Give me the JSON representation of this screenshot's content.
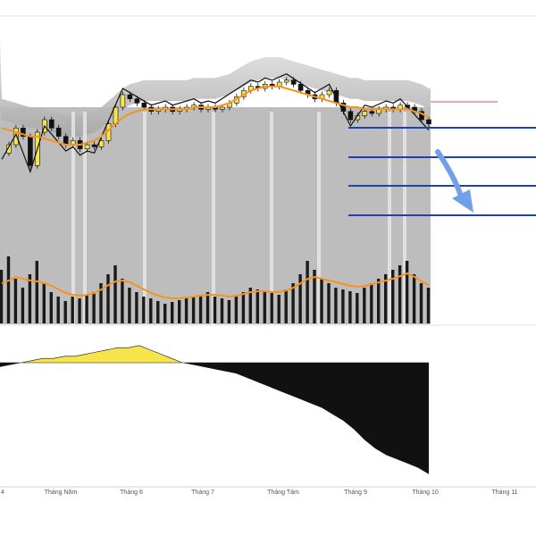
{
  "chart_data": {
    "type": "candlestick",
    "grid": false,
    "legend": "none",
    "x_ticks": [
      "4",
      "Tháng Năm",
      "Tháng 6",
      "Tháng 7",
      "Tháng Tám",
      "Tháng 9",
      "Tháng 10",
      "Tháng 11"
    ],
    "colors": {
      "ma_line": "#f7931e",
      "candle_up": "#f5e44c",
      "candle_down": "#111111",
      "volume_bar": "#1a1a1a",
      "projection_lines": "#1f3fb5",
      "resistance_line": "#e05050",
      "arrow": "#6fa0e8",
      "oscillator_positive": "#f5e44c",
      "oscillator_negative": "#111111",
      "band_fill": "#bdbdbd",
      "highlight_columns": "#e6e6e6"
    },
    "price_path": [
      58,
      62,
      70,
      66,
      52,
      68,
      74,
      70,
      66,
      62,
      64,
      60,
      62,
      61,
      64,
      72,
      80,
      86,
      84,
      82,
      80,
      78,
      79,
      80,
      78,
      79,
      80,
      81,
      79,
      80,
      79,
      80,
      82,
      85,
      88,
      90,
      89,
      91,
      90,
      92,
      93,
      91,
      88,
      86,
      84,
      86,
      88,
      82,
      78,
      74,
      76,
      78,
      77,
      79,
      80,
      79,
      81,
      80,
      78,
      74,
      72
    ],
    "ma_path": [
      70,
      69,
      68,
      67,
      66,
      66,
      65,
      64,
      63,
      62,
      62,
      62,
      63,
      64,
      66,
      69,
      72,
      75,
      77,
      78,
      79,
      79,
      79,
      79,
      79,
      79,
      79,
      80,
      80,
      80,
      80,
      81,
      82,
      84,
      86,
      88,
      89,
      90,
      90,
      90,
      89,
      88,
      87,
      86,
      85,
      84,
      83,
      82,
      81,
      80,
      80,
      79,
      79,
      79,
      79,
      79,
      79,
      79,
      78,
      77,
      75
    ],
    "volume_bars": [
      60,
      75,
      50,
      40,
      55,
      70,
      45,
      35,
      30,
      25,
      30,
      28,
      32,
      35,
      45,
      55,
      65,
      50,
      40,
      35,
      30,
      28,
      25,
      22,
      24,
      26,
      28,
      30,
      32,
      35,
      30,
      28,
      26,
      30,
      35,
      40,
      38,
      36,
      34,
      32,
      38,
      45,
      55,
      70,
      60,
      50,
      45,
      40,
      38,
      36,
      34,
      40,
      45,
      50,
      55,
      60,
      65,
      70,
      55,
      45,
      40
    ],
    "volume_ma": [
      45,
      48,
      52,
      50,
      48,
      47,
      45,
      42,
      38,
      34,
      32,
      31,
      32,
      34,
      38,
      43,
      47,
      48,
      46,
      42,
      38,
      34,
      31,
      29,
      28,
      28,
      29,
      30,
      31,
      32,
      32,
      31,
      30,
      31,
      33,
      35,
      36,
      36,
      35,
      35,
      37,
      40,
      45,
      50,
      52,
      50,
      48,
      46,
      44,
      42,
      41,
      42,
      44,
      46,
      48,
      50,
      53,
      56,
      52,
      47,
      43
    ],
    "oscillator": [
      -2,
      -1,
      0,
      1,
      2,
      2,
      3,
      3,
      4,
      5,
      6,
      7,
      7,
      8,
      6,
      4,
      2,
      0,
      -1,
      -2,
      -3,
      -4,
      -5,
      -7,
      -9,
      -11,
      -13,
      -15,
      -17,
      -19,
      -21,
      -24,
      -27,
      -31,
      -36,
      -40,
      -43,
      -45,
      -47,
      -49,
      -52
    ]
  }
}
